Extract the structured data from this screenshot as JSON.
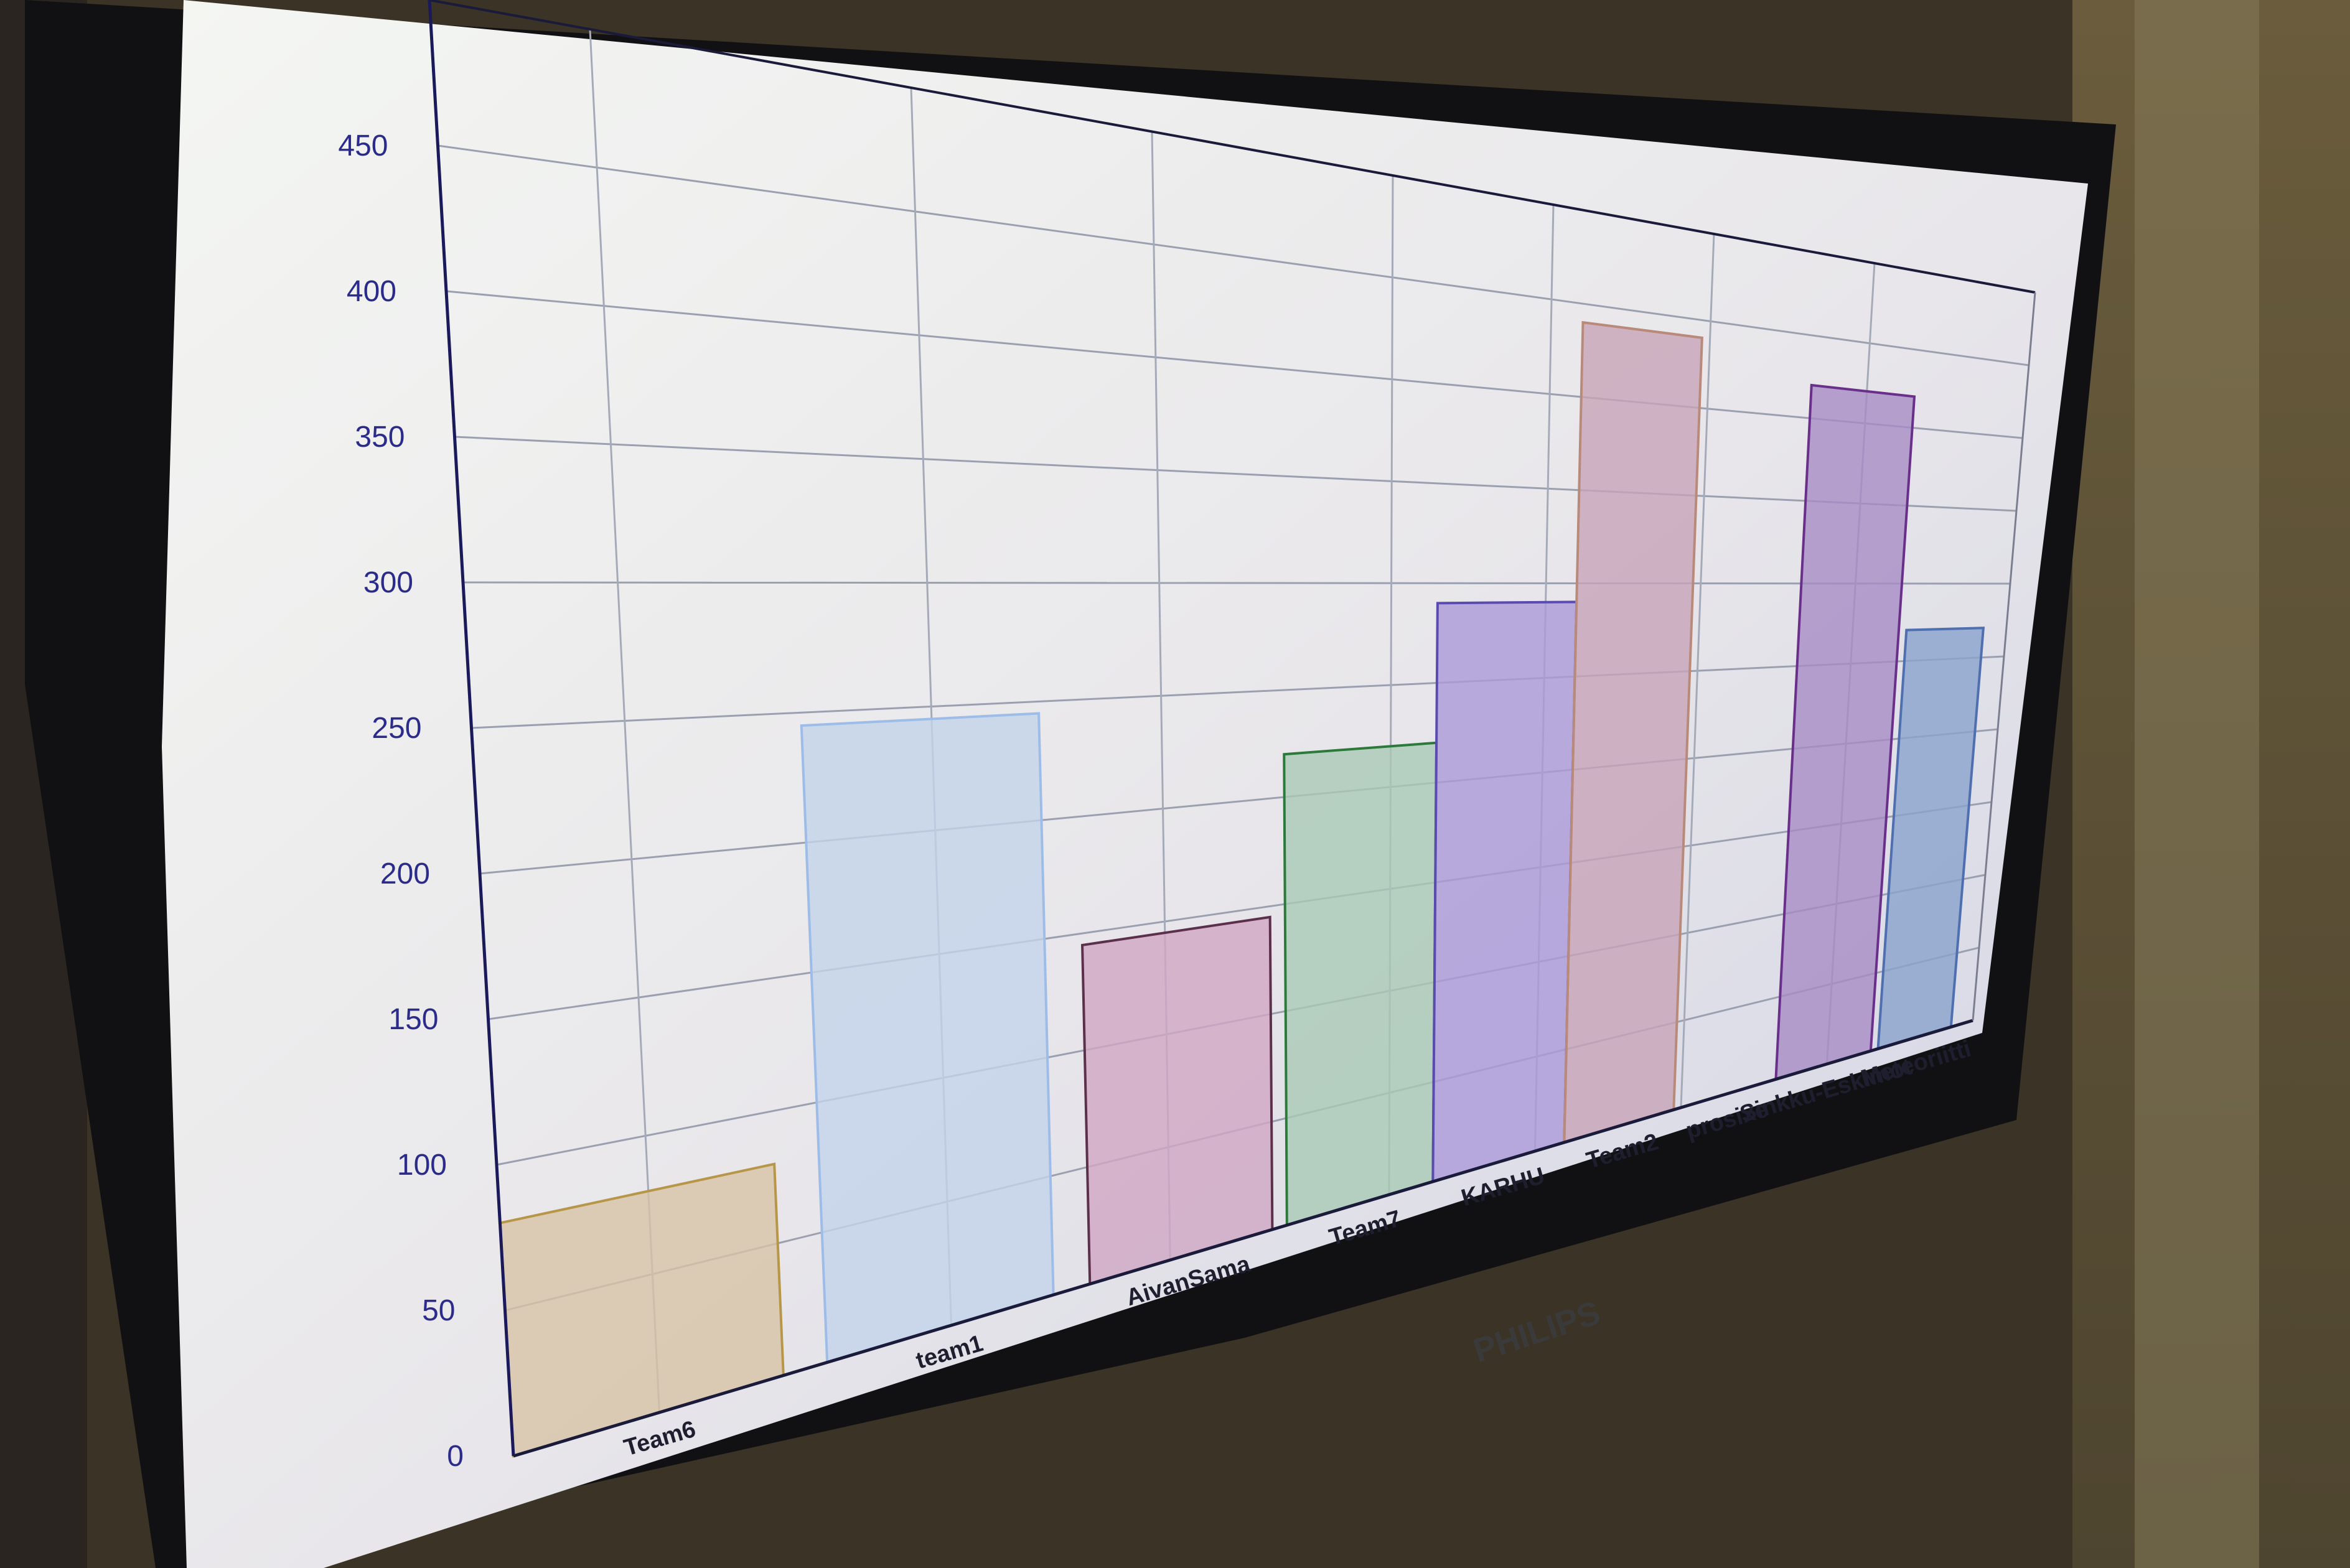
{
  "monitor": {
    "brand": "PHILIPS"
  },
  "chart_data": {
    "type": "bar",
    "title": "",
    "xlabel": "",
    "ylabel": "",
    "ylim": [
      0,
      500
    ],
    "yticks": [
      "0",
      "50",
      "100",
      "150",
      "200",
      "250",
      "300",
      "350",
      "400",
      "450"
    ],
    "grid": true,
    "categories": [
      "Team6",
      "team1",
      "AivanSama",
      "Team7",
      "KARHU",
      "Team2",
      "prosixe",
      "Sinkku-Eskimot",
      "Meteoriitti"
    ],
    "values": [
      80,
      245,
      145,
      220,
      290,
      440,
      0,
      420,
      270
    ],
    "colors": [
      "#d7c3a6",
      "#c3d3ea",
      "#cfa6c3",
      "#a9c9b5",
      "#ab9ad8",
      "#c7a4b8",
      "#bfbfbf",
      "#a68cc4",
      "#8aa2cc"
    ],
    "borders": [
      "#b79648",
      "#9dbde8",
      "#5c2f4a",
      "#2b7a3a",
      "#5a4bb0",
      "#b98a7a",
      "#999999",
      "#6a2f8a",
      "#4f6fb0"
    ]
  }
}
